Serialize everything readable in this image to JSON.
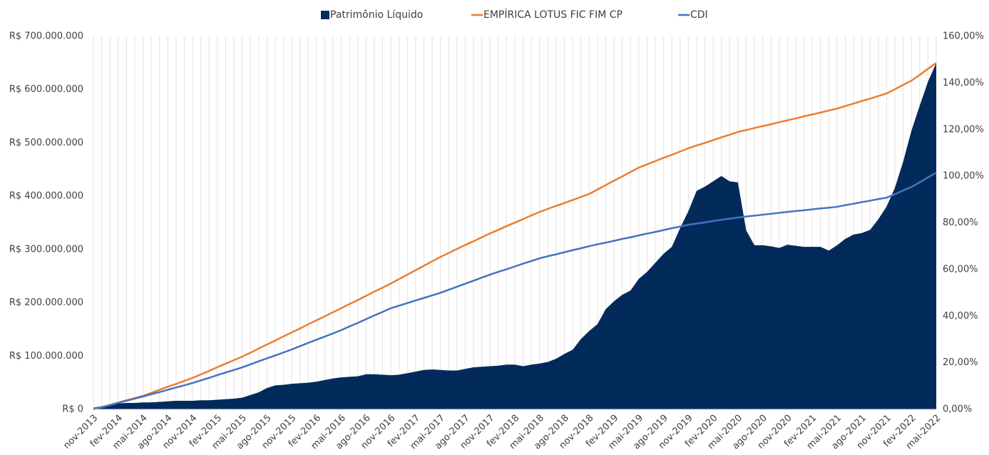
{
  "chart_data": {
    "type": "combo",
    "categories": [
      "nov-2013",
      null,
      null,
      "fev-2014",
      null,
      null,
      "mai-2014",
      null,
      null,
      "ago-2014",
      null,
      null,
      "nov-2014",
      null,
      null,
      "fev-2015",
      null,
      null,
      "mai-2015",
      null,
      null,
      "ago-2015",
      null,
      null,
      "nov-2015",
      null,
      null,
      "fev-2016",
      null,
      null,
      "mai-2016",
      null,
      null,
      "ago-2016",
      null,
      null,
      "nov-2016",
      null,
      null,
      "fev-2017",
      null,
      null,
      "mai-2017",
      null,
      null,
      "ago-2017",
      null,
      null,
      "nov-2017",
      null,
      null,
      "fev-2018",
      null,
      null,
      "mai-2018",
      null,
      null,
      "ago-2018",
      null,
      null,
      "nov-2018",
      null,
      null,
      "fev-2019",
      null,
      null,
      "mai-2019",
      null,
      null,
      "ago-2019",
      null,
      null,
      "nov-2019",
      null,
      null,
      "fev-2020",
      null,
      null,
      "mai-2020",
      null,
      null,
      "ago-2020",
      null,
      null,
      "nov-2020",
      null,
      null,
      "fev-2021",
      null,
      null,
      "mai-2021",
      null,
      null,
      "ago-2021",
      null,
      null,
      "nov-2021",
      null,
      null,
      "fev-2022",
      null,
      null,
      "mai-2022"
    ],
    "series": [
      {
        "name": "Patrimônio Líquido",
        "type": "area",
        "color": "#022b5b",
        "values": [
          3000000,
          6000000,
          9000000,
          11000000,
          12000000,
          12000000,
          13000000,
          13000000,
          14000000,
          15000000,
          16000000,
          16000000,
          16000000,
          17000000,
          17000000,
          18000000,
          19000000,
          20000000,
          22000000,
          27000000,
          32000000,
          40000000,
          45000000,
          46000000,
          48000000,
          49000000,
          50000000,
          52000000,
          55000000,
          58000000,
          60000000,
          61000000,
          62000000,
          66000000,
          66000000,
          65000000,
          64000000,
          65000000,
          68000000,
          71000000,
          74000000,
          75000000,
          74000000,
          73000000,
          73000000,
          76000000,
          79000000,
          80000000,
          81000000,
          82000000,
          84000000,
          84000000,
          81000000,
          84000000,
          86000000,
          89000000,
          95000000,
          104000000,
          112000000,
          132000000,
          147000000,
          160000000,
          188000000,
          203000000,
          215000000,
          223000000,
          245000000,
          258000000,
          275000000,
          292000000,
          305000000,
          340000000,
          372000000,
          410000000,
          418000000,
          428000000,
          438000000,
          428000000,
          426000000,
          336000000,
          308000000,
          308000000,
          306000000,
          303000000,
          309000000,
          307000000,
          305000000,
          305000000,
          305000000,
          298000000,
          308000000,
          320000000,
          328000000,
          331000000,
          337000000,
          357000000,
          381000000,
          416000000,
          465000000,
          523000000,
          570000000,
          615000000,
          650000000
        ]
      },
      {
        "name": "EMPÍRICA LOTUS FIC FIM CP",
        "type": "line",
        "axis": "y2",
        "color": "#ed7d31",
        "values": [
          0,
          1,
          1.9,
          2.9,
          3.9,
          4.8,
          5.8,
          7.1,
          8.4,
          9.7,
          10.9,
          12.2,
          13.5,
          15,
          16.5,
          18.1,
          19.6,
          21.1,
          22.6,
          24.3,
          26.1,
          27.8,
          29.5,
          31.3,
          33,
          34.7,
          36.5,
          38.2,
          39.9,
          41.7,
          43.4,
          45.2,
          46.9,
          48.7,
          50.5,
          52.2,
          54,
          55.9,
          57.8,
          59.7,
          61.6,
          63.5,
          65.4,
          67.1,
          68.8,
          70.5,
          72.1,
          73.8,
          75.5,
          77,
          78.6,
          80.1,
          81.6,
          83.2,
          84.7,
          86,
          87.3,
          88.5,
          89.8,
          91.1,
          92.4,
          94.3,
          96.2,
          98.1,
          99.9,
          101.8,
          103.7,
          105.1,
          106.5,
          107.9,
          109.2,
          110.6,
          112,
          113.2,
          114.3,
          115.5,
          116.7,
          117.8,
          119,
          119.8,
          120.7,
          121.5,
          122.3,
          123.2,
          124,
          124.8,
          125.7,
          126.5,
          127.3,
          128.2,
          129,
          130.1,
          131.2,
          132.3,
          133.3,
          134.4,
          135.5,
          137.3,
          139.2,
          141,
          143.5,
          146.1,
          148.6
        ]
      },
      {
        "name": "CDI",
        "type": "line",
        "axis": "y2",
        "color": "#4472c4",
        "values": [
          0,
          0.9,
          1.8,
          2.8,
          3.7,
          4.6,
          5.5,
          6.5,
          7.4,
          8.4,
          9.4,
          10.3,
          11.3,
          12.4,
          13.5,
          14.7,
          15.8,
          16.9,
          18,
          19.3,
          20.6,
          21.9,
          23.1,
          24.4,
          25.7,
          27.1,
          28.5,
          29.9,
          31.2,
          32.6,
          34,
          35.6,
          37.1,
          38.7,
          40.3,
          41.8,
          43.4,
          44.5,
          45.6,
          46.7,
          47.8,
          48.9,
          50,
          51.3,
          52.6,
          53.9,
          55.2,
          56.5,
          57.8,
          59,
          60.1,
          61.3,
          62.5,
          63.6,
          64.8,
          65.7,
          66.5,
          67.4,
          68.3,
          69.1,
          70,
          70.8,
          71.5,
          72.3,
          73.1,
          73.8,
          74.6,
          75.4,
          76.1,
          76.9,
          77.7,
          78.4,
          79.2,
          79.7,
          80.2,
          80.8,
          81.3,
          81.8,
          82.3,
          82.7,
          83.1,
          83.5,
          83.9,
          84.3,
          84.7,
          85.1,
          85.4,
          85.8,
          86.2,
          86.5,
          86.9,
          87.6,
          88.2,
          88.9,
          89.5,
          90.2,
          90.8,
          92.3,
          93.9,
          95.4,
          97.4,
          99.5,
          101.5
        ]
      }
    ],
    "ylim": [
      0,
      700000000
    ],
    "yticks": [
      {
        "value": 0,
        "label": "R$ 0"
      },
      {
        "value": 100000000,
        "label": "R$ 100.000.000"
      },
      {
        "value": 200000000,
        "label": "R$ 200.000.000"
      },
      {
        "value": 300000000,
        "label": "R$ 300.000.000"
      },
      {
        "value": 400000000,
        "label": "R$ 400.000.000"
      },
      {
        "value": 500000000,
        "label": "R$ 500.000.000"
      },
      {
        "value": 600000000,
        "label": "R$ 600.000.000"
      },
      {
        "value": 700000000,
        "label": "R$ 700.000.000"
      }
    ],
    "y2lim": [
      0,
      160
    ],
    "y2ticks": [
      {
        "value": 0,
        "label": "0,00%"
      },
      {
        "value": 20,
        "label": "20,00%"
      },
      {
        "value": 40,
        "label": "40,00%"
      },
      {
        "value": 60,
        "label": "60,00%"
      },
      {
        "value": 80,
        "label": "80,00%"
      },
      {
        "value": 100,
        "label": "100,00%"
      },
      {
        "value": 120,
        "label": "120,00%"
      },
      {
        "value": 140,
        "label": "140,00%"
      },
      {
        "value": 160,
        "label": "160,00%"
      }
    ],
    "grid": "x",
    "legend": "top"
  }
}
